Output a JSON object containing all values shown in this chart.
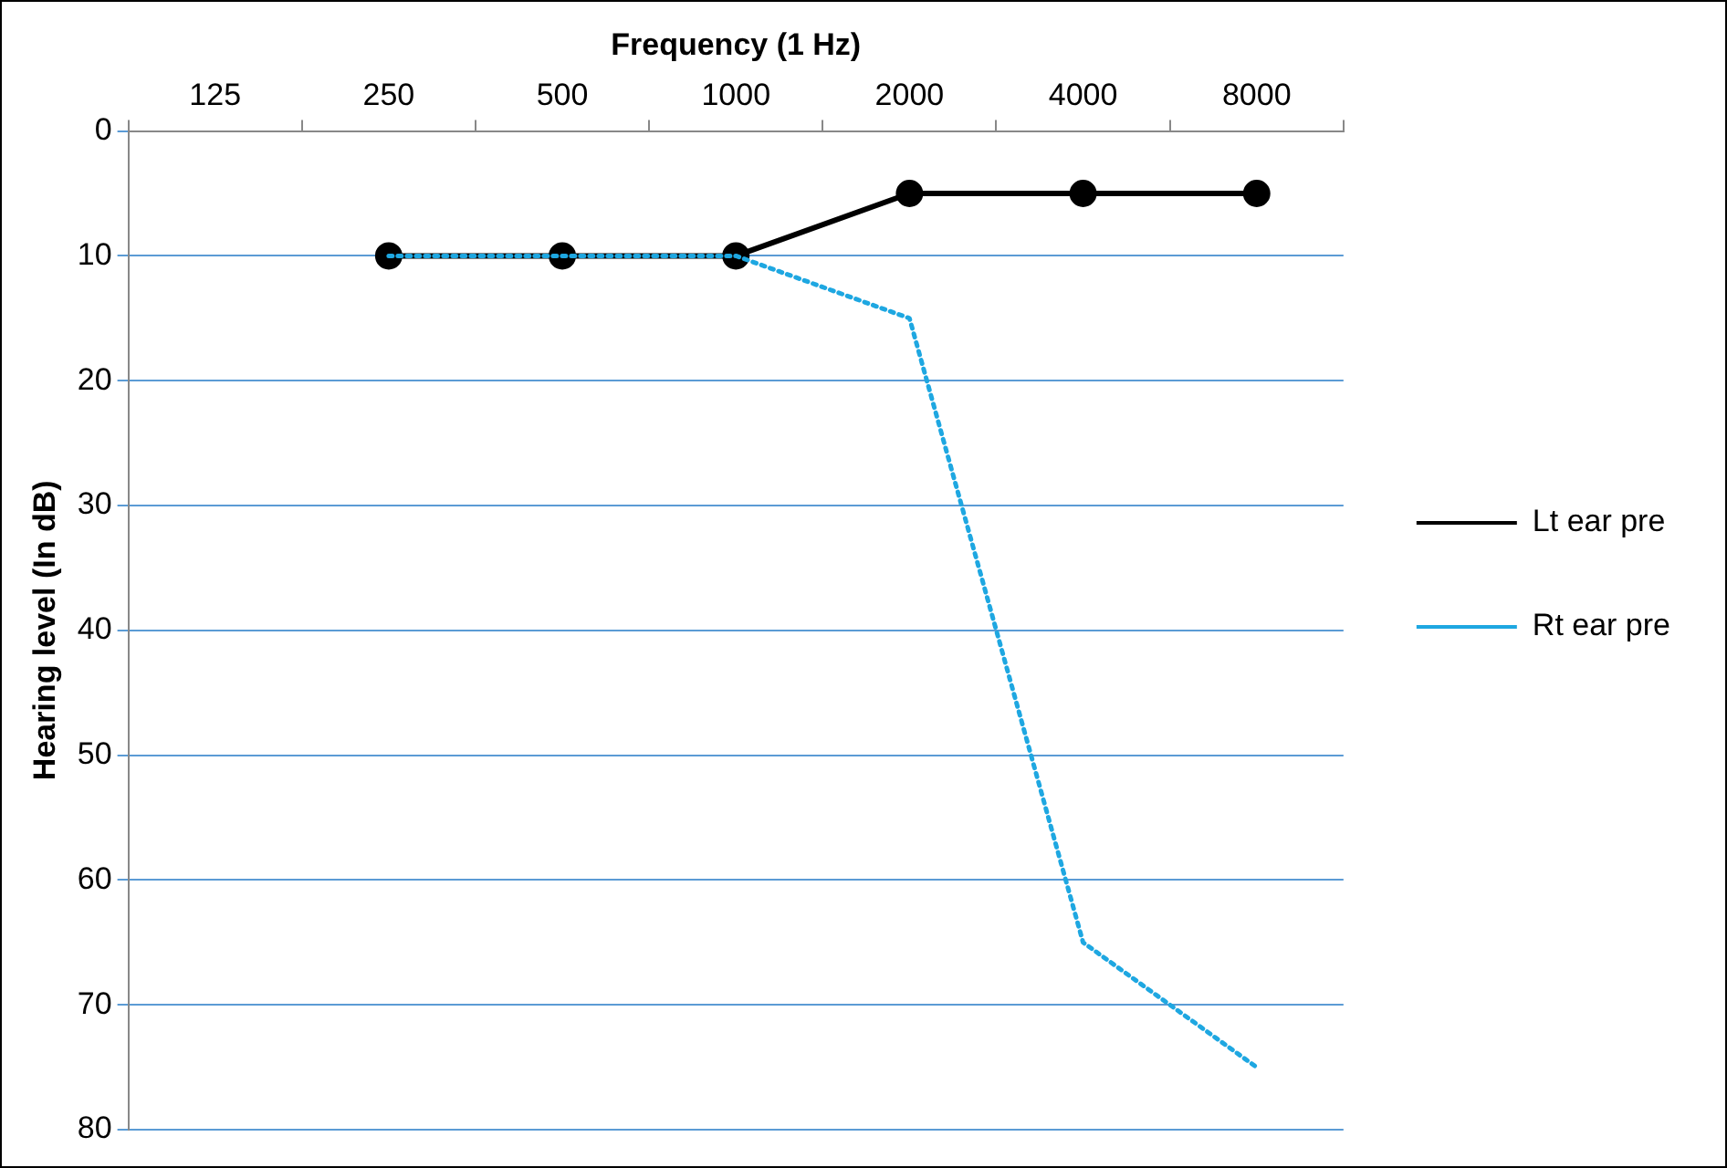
{
  "chart_data": {
    "type": "line",
    "xlabel": "Frequency (1 Hz)",
    "ylabel": "Hearing level (In dB)",
    "categories": [
      "125",
      "250",
      "500",
      "1000",
      "2000",
      "4000",
      "8000"
    ],
    "series": [
      {
        "name": "Lt ear pre",
        "color": "#000000",
        "values": [
          null,
          10,
          10,
          10,
          5,
          5,
          5
        ],
        "marker": "circle",
        "line_style": "solid"
      },
      {
        "name": "Rt ear pre",
        "color": "#1ea7e1",
        "values": [
          null,
          10,
          10,
          10,
          15,
          65,
          75
        ],
        "marker": "none",
        "line_style": "dotted"
      }
    ],
    "ylim": [
      80,
      0
    ],
    "yticks": [
      0,
      10,
      20,
      30,
      40,
      50,
      60,
      70,
      80
    ],
    "grid": "y",
    "legend": "right"
  }
}
